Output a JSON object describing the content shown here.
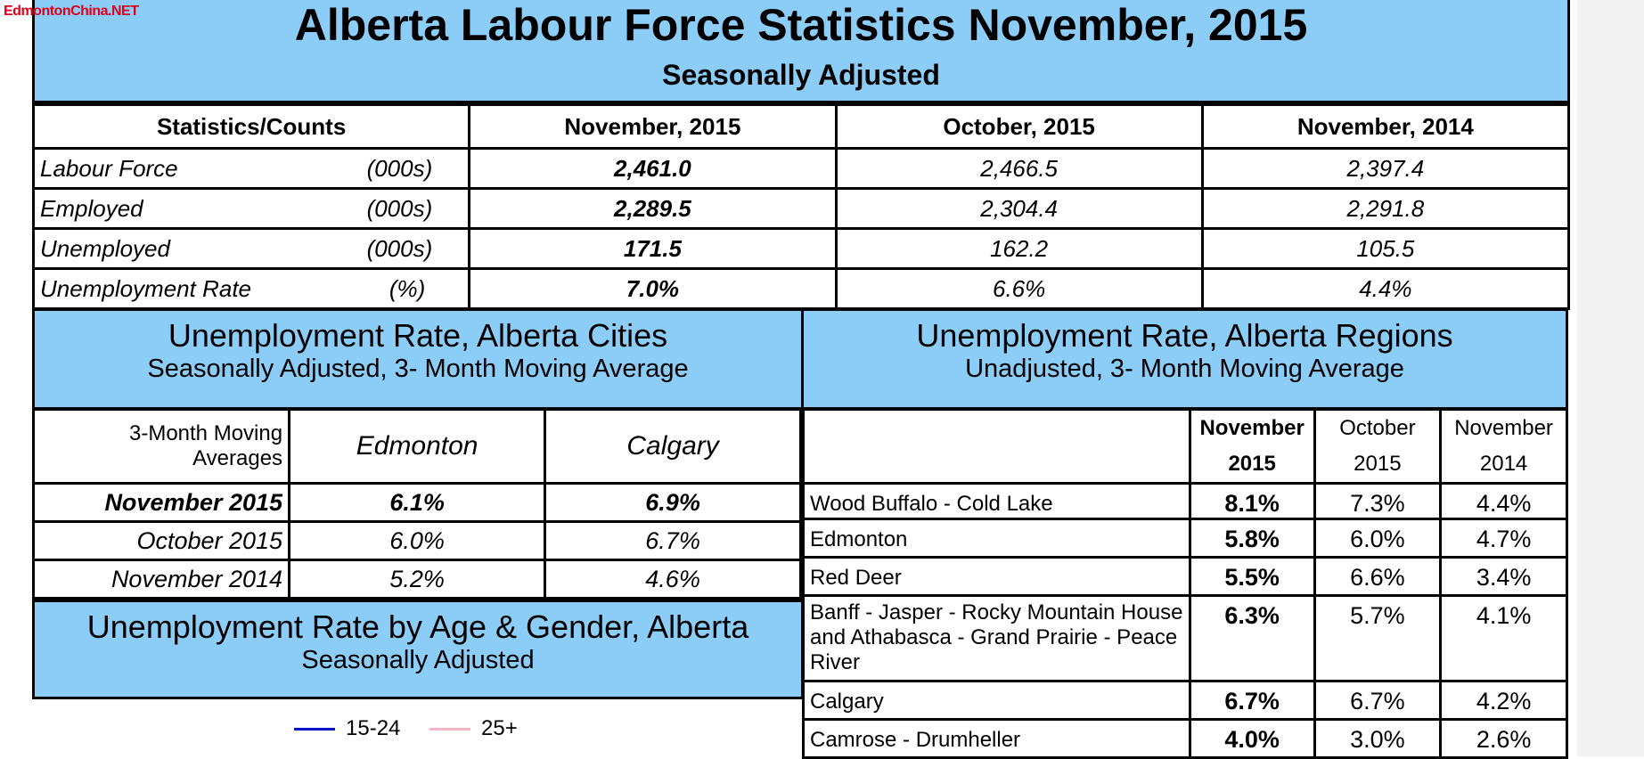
{
  "watermark": "EdmontonChina.NET",
  "header": {
    "title": "Alberta Labour Force Statistics November, 2015",
    "subtitle": "Seasonally Adjusted"
  },
  "labour_table": {
    "columns": [
      "Statistics/Counts",
      "November, 2015",
      "October, 2015",
      "November, 2014"
    ],
    "rows": [
      {
        "label": "Labour Force",
        "unit": "(000s)",
        "values": [
          "2,461.0",
          "2,466.5",
          "2,397.4"
        ]
      },
      {
        "label": "Employed",
        "unit": "(000s)",
        "values": [
          "2,289.5",
          "2,304.4",
          "2,291.8"
        ]
      },
      {
        "label": "Unemployed",
        "unit": "(000s)",
        "values": [
          "171.5",
          "162.2",
          "105.5"
        ]
      },
      {
        "label": "Unemployment Rate",
        "unit": "(%)",
        "values": [
          "7.0%",
          "6.6%",
          "4.4%"
        ]
      }
    ]
  },
  "cities": {
    "title": "Unemployment Rate, Alberta Cities",
    "subtitle": "Seasonally Adjusted, 3- Month Moving Average",
    "corner_label": "3-Month Moving Averages",
    "corner_line1": "3-Month Moving",
    "corner_line2": "Averages",
    "columns": [
      "Edmonton",
      "Calgary"
    ],
    "rows": [
      {
        "label": "November 2015",
        "values": [
          "6.1%",
          "6.9%"
        ]
      },
      {
        "label": "October 2015",
        "values": [
          "6.0%",
          "6.7%"
        ]
      },
      {
        "label": "November 2014",
        "values": [
          "5.2%",
          "4.6%"
        ]
      }
    ]
  },
  "regions": {
    "title": "Unemployment Rate, Alberta Regions",
    "subtitle": "Unadjusted, 3- Month Moving Average",
    "columns": [
      {
        "l1": "November",
        "l2": "2015"
      },
      {
        "l1": "October",
        "l2": "2015"
      },
      {
        "l1": "November",
        "l2": "2014"
      }
    ],
    "rows": [
      {
        "name": "Wood Buffalo - Cold Lake",
        "values": [
          "8.1%",
          "7.3%",
          "4.4%"
        ]
      },
      {
        "name": "Edmonton",
        "values": [
          "5.8%",
          "6.0%",
          "4.7%"
        ]
      },
      {
        "name": "Red Deer",
        "values": [
          "5.5%",
          "6.6%",
          "3.4%"
        ]
      },
      {
        "name": "Banff - Jasper - Rocky Mountain House and Athabasca - Grand Prairie - Peace River",
        "values": [
          "6.3%",
          "5.7%",
          "4.1%"
        ]
      },
      {
        "name": "Calgary",
        "values": [
          "6.7%",
          "6.7%",
          "4.2%"
        ]
      },
      {
        "name": "Camrose - Drumheller",
        "values": [
          "4.0%",
          "3.0%",
          "2.6%"
        ]
      }
    ]
  },
  "age_gender": {
    "title": "Unemployment Rate by Age & Gender, Alberta",
    "subtitle": "Seasonally Adjusted",
    "legend": [
      {
        "label": "15-24",
        "color": "#0a14c8"
      },
      {
        "label": "25+",
        "color": "#f4b6c2"
      }
    ]
  }
}
